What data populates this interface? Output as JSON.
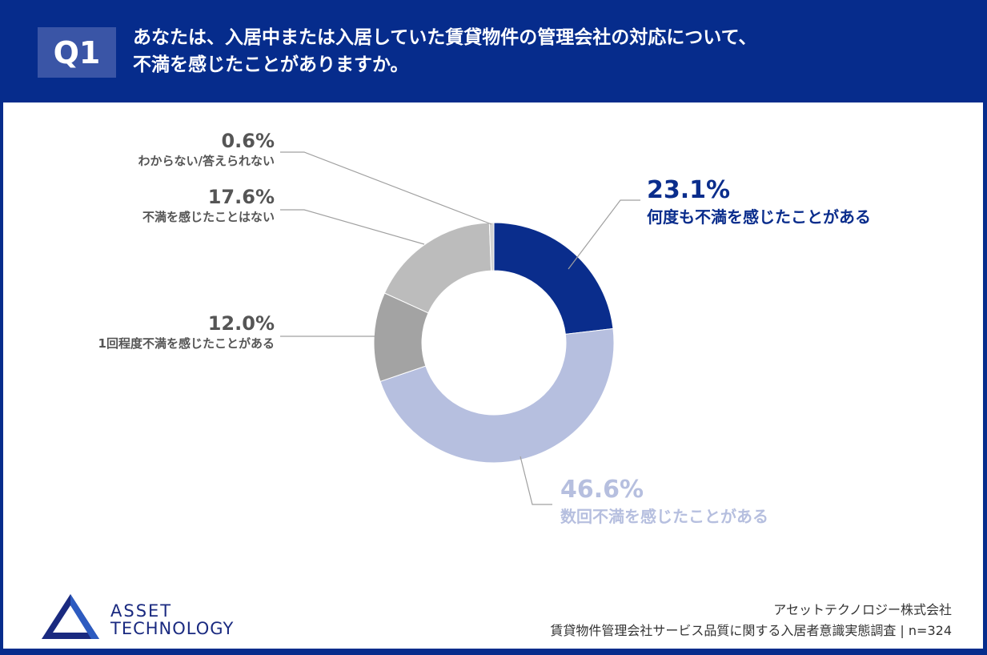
{
  "header": {
    "badge": "Q1",
    "title_line1": "あなたは、入居中または入居していた賃貸物件の管理会社の対応について、",
    "title_line2": "不満を感じたことがありますか。"
  },
  "chart_data": {
    "type": "pie",
    "donut": true,
    "slices": [
      {
        "label": "何度も不満を感じたことがある",
        "value": 23.1,
        "pct": "23.1%",
        "color": "#0a2d8c"
      },
      {
        "label": "数回不満を感じたことがある",
        "value": 46.6,
        "pct": "46.6%",
        "color": "#b6bfdf"
      },
      {
        "label": "1回程度不満を感じたことがある",
        "value": 12.0,
        "pct": "12.0%",
        "color": "#a3a3a3"
      },
      {
        "label": "不満を感じたことはない",
        "value": 17.6,
        "pct": "17.6%",
        "color": "#bcbcbc"
      },
      {
        "label": "わからない/答えられない",
        "value": 0.6,
        "pct": "0.6%",
        "color": "#d2d2d2"
      }
    ],
    "start": "top",
    "direction": "clockwise"
  },
  "footer": {
    "company": "アセットテクノロジー株式会社",
    "survey": "賃貸物件管理会社サービス品質に関する入居者意識実態調査 | n=324"
  },
  "logo": {
    "text_line1": "ASSET",
    "text_line2": "TECHNOLOGY",
    "color": "#1a2a80"
  }
}
